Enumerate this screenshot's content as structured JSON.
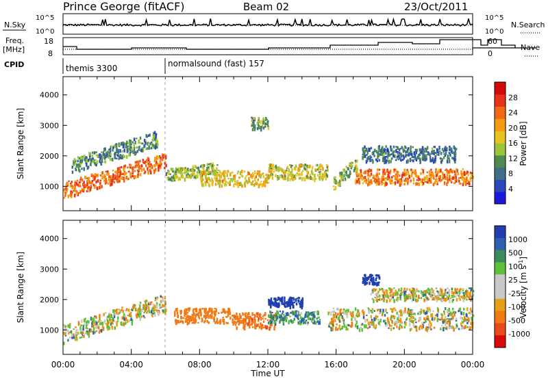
{
  "header": {
    "station": "Prince George (fitACF)",
    "beam": "Beam 02",
    "date": "23/Oct/2011"
  },
  "top_panels": {
    "nsky_label": "N.Sky",
    "nsearch_label": "N.Search",
    "noise_ticks": [
      "10^5",
      "10^0"
    ],
    "freq_label_1": "Freq.",
    "freq_label_2": "[MHz]",
    "freq_ticks": [
      "18",
      "8"
    ],
    "nave_label": "Nave",
    "nave_ticks": [
      "60",
      "0"
    ],
    "cpid_label": "CPID",
    "cpid_segments": [
      {
        "name": "themis 3300",
        "start_hour": 0
      },
      {
        "name": "normalsound (fast) 157",
        "start_hour": 6
      }
    ]
  },
  "colors": {
    "power_scale": [
      "#1a1adc",
      "#2a48b8",
      "#3d6e8a",
      "#4f8a50",
      "#9cc63a",
      "#e8c21e",
      "#f59a12",
      "#f06a14",
      "#e8321a",
      "#d40a0a"
    ],
    "velocity_scale": [
      "#1f3fb0",
      "#2e5fb0",
      "#3d8a5a",
      "#5cc23a",
      "#c8c8c8",
      "#c8c8c8",
      "#e6a018",
      "#f07a14",
      "#e84a18",
      "#d80a0a"
    ]
  },
  "chart_data": [
    {
      "type": "heatmap",
      "panel": "power",
      "ylabel": "Slant Range [km]",
      "yticks": [
        "1000",
        "2000",
        "3000",
        "4000"
      ],
      "ylim": [
        200,
        4600
      ],
      "xlim": [
        0,
        24
      ],
      "xticks": [
        "00:00",
        "04:00",
        "08:00",
        "12:00",
        "16:00",
        "20:00",
        "00:00"
      ],
      "colorbar_label": "Power [dB]",
      "colorbar_ticks": [
        "4",
        "8",
        "12",
        "16",
        "20",
        "24",
        "28"
      ],
      "colorbar_range": [
        0,
        32
      ],
      "scatter_bands": [
        {
          "t_start": 0.0,
          "t_end": 6.0,
          "r_start": 900,
          "r_end": 1900,
          "thickness": 500,
          "value": 24
        },
        {
          "t_start": 0.5,
          "t_end": 5.5,
          "r_start": 1700,
          "r_end": 2600,
          "thickness": 500,
          "value": 10
        },
        {
          "t_start": 6.0,
          "t_end": 9.0,
          "r_start": 1400,
          "r_end": 1600,
          "thickness": 400,
          "value": 14
        },
        {
          "t_start": 8.0,
          "t_end": 12.0,
          "r_start": 1300,
          "r_end": 1300,
          "thickness": 500,
          "value": 18
        },
        {
          "t_start": 12.0,
          "t_end": 15.5,
          "r_start": 1500,
          "r_end": 1500,
          "thickness": 500,
          "value": 16
        },
        {
          "t_start": 15.8,
          "t_end": 17.2,
          "r_start": 1100,
          "r_end": 1800,
          "thickness": 400,
          "value": 14
        },
        {
          "t_start": 17.0,
          "t_end": 24.0,
          "r_start": 1350,
          "r_end": 1350,
          "thickness": 500,
          "value": 23
        },
        {
          "t_start": 17.5,
          "t_end": 23.0,
          "r_start": 2100,
          "r_end": 2100,
          "thickness": 500,
          "value": 8
        },
        {
          "t_start": 11.0,
          "t_end": 12.0,
          "r_start": 3100,
          "r_end": 3100,
          "thickness": 400,
          "value": 12
        }
      ]
    },
    {
      "type": "heatmap",
      "panel": "velocity",
      "ylabel": "Slant Range [km]",
      "yticks": [
        "1000",
        "2000",
        "3000",
        "4000"
      ],
      "ylim": [
        200,
        4600
      ],
      "xlim": [
        0,
        24
      ],
      "xticks": [
        "00:00",
        "04:00",
        "08:00",
        "12:00",
        "16:00",
        "20:00",
        "00:00"
      ],
      "xlabel": "Time UT",
      "colorbar_label": "Velocity [m s",
      "colorbar_label_exp": "-1",
      "colorbar_label_end": "]",
      "colorbar_ticks": [
        "1000",
        "500",
        "100",
        "25",
        "-25",
        "-100",
        "-500",
        "-1000"
      ],
      "scatter_bands": [
        {
          "t_start": 0.0,
          "t_end": 6.0,
          "r_start": 900,
          "r_end": 1900,
          "thickness": 600,
          "value": 0
        },
        {
          "t_start": 6.5,
          "t_end": 10.0,
          "r_start": 1500,
          "r_end": 1500,
          "thickness": 500,
          "value": -300
        },
        {
          "t_start": 10.0,
          "t_end": 12.5,
          "r_start": 1350,
          "r_end": 1350,
          "thickness": 500,
          "value": -400
        },
        {
          "t_start": 12.0,
          "t_end": 15.0,
          "r_start": 1450,
          "r_end": 1450,
          "thickness": 400,
          "value": 150
        },
        {
          "t_start": 12.0,
          "t_end": 14.0,
          "r_start": 1950,
          "r_end": 1950,
          "thickness": 300,
          "value": 800
        },
        {
          "t_start": 15.5,
          "t_end": 24.0,
          "r_start": 1400,
          "r_end": 1400,
          "thickness": 700,
          "value": 0
        },
        {
          "t_start": 18.0,
          "t_end": 24.0,
          "r_start": 2200,
          "r_end": 2200,
          "thickness": 400,
          "value": 0
        },
        {
          "t_start": 17.5,
          "t_end": 18.5,
          "r_start": 2700,
          "r_end": 2700,
          "thickness": 300,
          "value": 700
        }
      ]
    }
  ]
}
